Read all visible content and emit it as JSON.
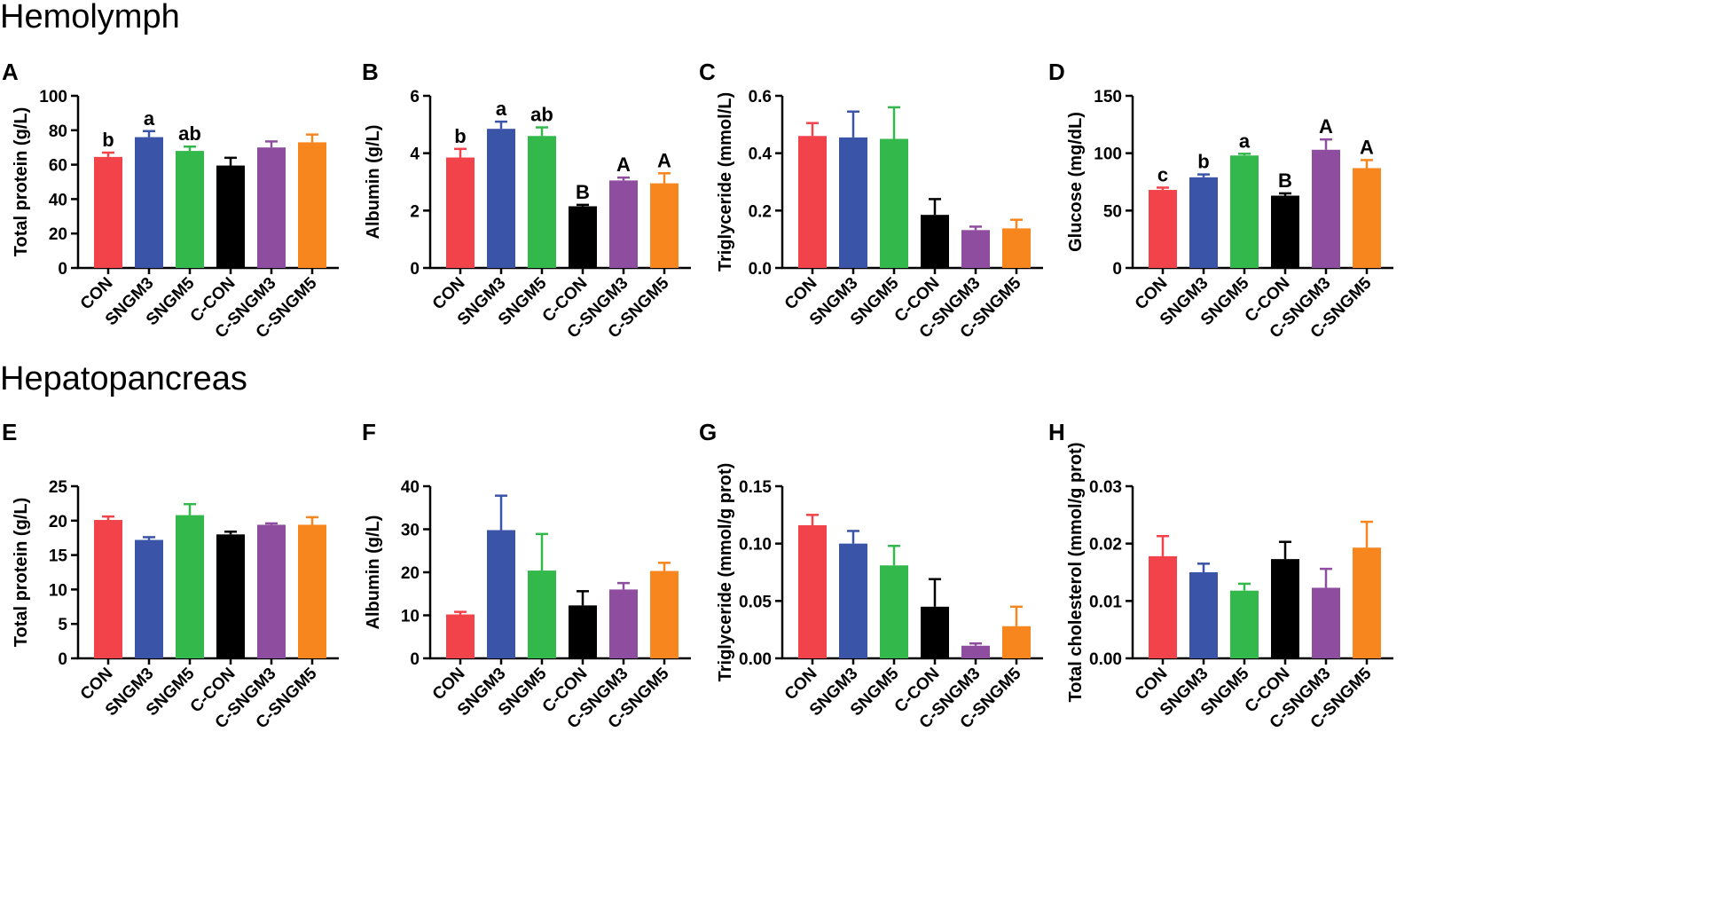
{
  "sections": {
    "top": "Hemolymph",
    "bottom": "Hepatopancreas"
  },
  "colors": {
    "CON": "#f2424a",
    "SNGM3": "#3a55a8",
    "SNGM5": "#33b84c",
    "C-CON": "#000000",
    "C-SNGM3": "#8e4d9f",
    "C-SNGM5": "#f7861e"
  },
  "chart_data": [
    {
      "panel": "A",
      "type": "bar",
      "ylabel": "Total protein (g/L)",
      "categories": [
        "CON",
        "SNGM3",
        "SNGM5",
        "C-CON",
        "C-SNGM3",
        "C-SNGM5"
      ],
      "values": [
        64.5,
        76,
        68,
        59.5,
        70,
        73
      ],
      "errors": [
        2.5,
        3.5,
        2.5,
        4.5,
        3.5,
        4.5
      ],
      "letters": [
        "b",
        "a",
        "ab",
        "",
        "",
        ""
      ],
      "ylim": [
        0,
        100
      ],
      "yticks": [
        "0",
        "20",
        "40",
        "60",
        "80",
        "100"
      ]
    },
    {
      "panel": "B",
      "type": "bar",
      "ylabel": "Albumin (g/L)",
      "categories": [
        "CON",
        "SNGM3",
        "SNGM5",
        "C-CON",
        "C-SNGM3",
        "C-SNGM5"
      ],
      "values": [
        3.85,
        4.85,
        4.6,
        2.15,
        3.05,
        2.95
      ],
      "errors": [
        0.3,
        0.25,
        0.3,
        0.05,
        0.1,
        0.35
      ],
      "letters": [
        "b",
        "a",
        "ab",
        "B",
        "A",
        "A"
      ],
      "ylim": [
        0,
        6
      ],
      "yticks": [
        "0",
        "2",
        "4",
        "6"
      ]
    },
    {
      "panel": "C",
      "type": "bar",
      "ylabel": "Triglyceride (mmol/L)",
      "categories": [
        "CON",
        "SNGM3",
        "SNGM5",
        "C-CON",
        "C-SNGM3",
        "C-SNGM5"
      ],
      "values": [
        0.46,
        0.455,
        0.45,
        0.185,
        0.132,
        0.138
      ],
      "errors": [
        0.045,
        0.09,
        0.11,
        0.055,
        0.012,
        0.03
      ],
      "letters": [
        "",
        "",
        "",
        "",
        "",
        ""
      ],
      "ylim": [
        0,
        0.6
      ],
      "yticks": [
        "0.0",
        "0.2",
        "0.4",
        "0.6"
      ]
    },
    {
      "panel": "D",
      "type": "bar",
      "ylabel": "Glucose (mg/dL)",
      "categories": [
        "CON",
        "SNGM3",
        "SNGM5",
        "C-CON",
        "C-SNGM3",
        "C-SNGM5"
      ],
      "values": [
        68,
        79,
        98,
        63,
        103,
        87
      ],
      "errors": [
        2,
        2.5,
        1.5,
        2,
        9,
        7
      ],
      "letters": [
        "c",
        "b",
        "a",
        "B",
        "A",
        "A"
      ],
      "ylim": [
        0,
        150
      ],
      "yticks": [
        "0",
        "50",
        "100",
        "150"
      ]
    },
    {
      "panel": "E",
      "type": "bar",
      "ylabel": "Total protein (g/L)",
      "categories": [
        "CON",
        "SNGM3",
        "SNGM5",
        "C-CON",
        "C-SNGM3",
        "C-SNGM5"
      ],
      "values": [
        20.1,
        17.2,
        20.8,
        18,
        19.4,
        19.4
      ],
      "errors": [
        0.5,
        0.4,
        1.6,
        0.4,
        0.2,
        1.1
      ],
      "letters": [
        "",
        "",
        "",
        "",
        "",
        ""
      ],
      "ylim": [
        0,
        25
      ],
      "yticks": [
        "0",
        "5",
        "10",
        "15",
        "20",
        "25"
      ]
    },
    {
      "panel": "F",
      "type": "bar",
      "ylabel": "Albumin (g/L)",
      "categories": [
        "CON",
        "SNGM3",
        "SNGM5",
        "C-CON",
        "C-SNGM3",
        "C-SNGM5"
      ],
      "values": [
        10.2,
        29.8,
        20.4,
        12.3,
        16,
        20.3
      ],
      "errors": [
        0.6,
        8,
        8.5,
        3.3,
        1.5,
        1.9
      ],
      "letters": [
        "",
        "",
        "",
        "",
        "",
        ""
      ],
      "ylim": [
        0,
        40
      ],
      "yticks": [
        "0",
        "10",
        "20",
        "30",
        "40"
      ]
    },
    {
      "panel": "G",
      "type": "bar",
      "ylabel": "Triglyceride (mmol/g prot)",
      "categories": [
        "CON",
        "SNGM3",
        "SNGM5",
        "C-CON",
        "C-SNGM3",
        "C-SNGM5"
      ],
      "values": [
        0.116,
        0.1,
        0.081,
        0.045,
        0.011,
        0.028
      ],
      "errors": [
        0.009,
        0.011,
        0.017,
        0.024,
        0.002,
        0.017
      ],
      "letters": [
        "",
        "",
        "",
        "",
        "",
        ""
      ],
      "ylim": [
        0,
        0.15
      ],
      "yticks": [
        "0.00",
        "0.05",
        "0.10",
        "0.15"
      ]
    },
    {
      "panel": "H",
      "type": "bar",
      "ylabel": "Total cholesterol (mmol/g prot)",
      "categories": [
        "CON",
        "SNGM3",
        "SNGM5",
        "C-CON",
        "C-SNGM3",
        "C-SNGM5"
      ],
      "values": [
        0.0178,
        0.015,
        0.0118,
        0.0173,
        0.0123,
        0.0193
      ],
      "errors": [
        0.0035,
        0.0015,
        0.0012,
        0.003,
        0.0033,
        0.0045
      ],
      "letters": [
        "",
        "",
        "",
        "",
        "",
        ""
      ],
      "ylim": [
        0,
        0.03
      ],
      "yticks": [
        "0.00",
        "0.01",
        "0.02",
        "0.03"
      ]
    }
  ]
}
